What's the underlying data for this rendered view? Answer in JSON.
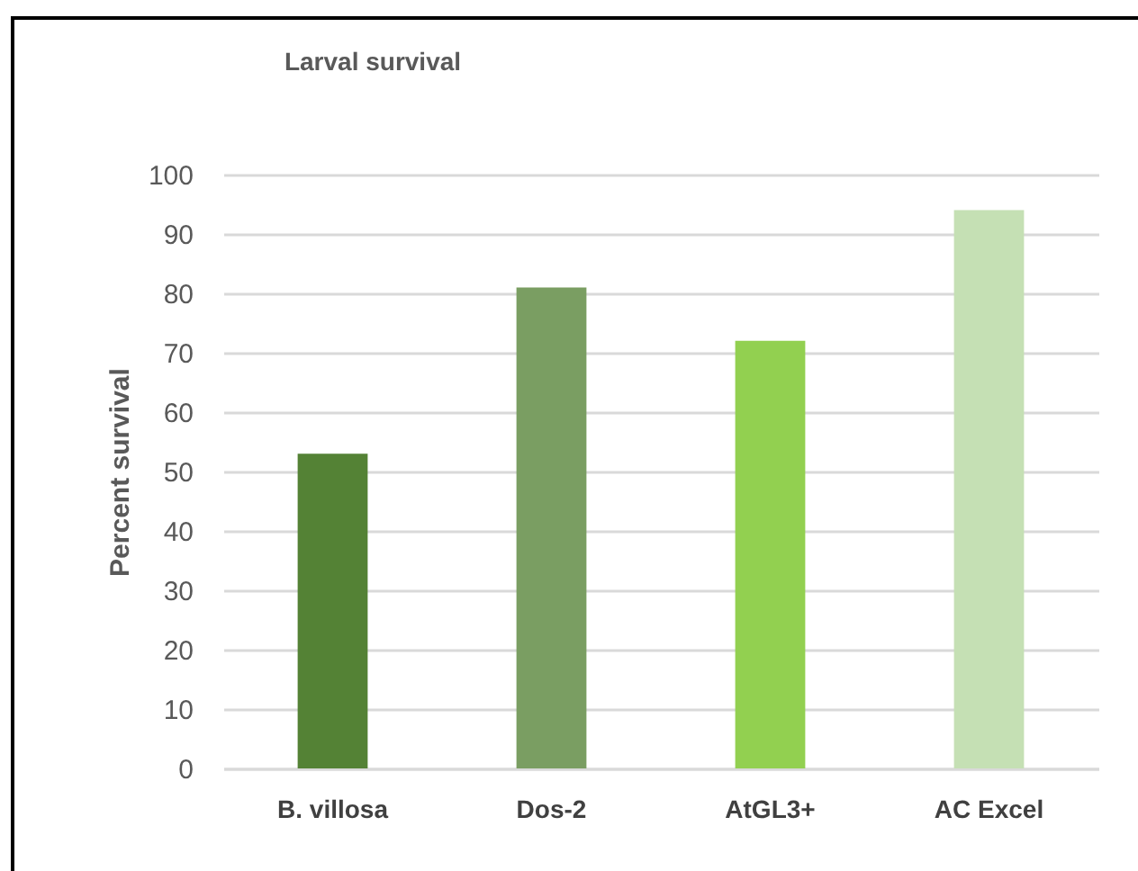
{
  "chart_data": {
    "type": "bar",
    "title": "Larval survival",
    "ylabel": "Percent survival",
    "categories": [
      "B. villosa",
      "Dos-2",
      "AtGL3+",
      "AC Excel"
    ],
    "values": [
      53,
      81,
      72,
      94
    ],
    "colors": [
      "#548235",
      "#7a9e62",
      "#92d050",
      "#c5e0b4"
    ],
    "ylim": [
      0,
      100
    ],
    "yticks": [
      0,
      10,
      20,
      30,
      40,
      50,
      60,
      70,
      80,
      90,
      100
    ],
    "grid": "y"
  }
}
